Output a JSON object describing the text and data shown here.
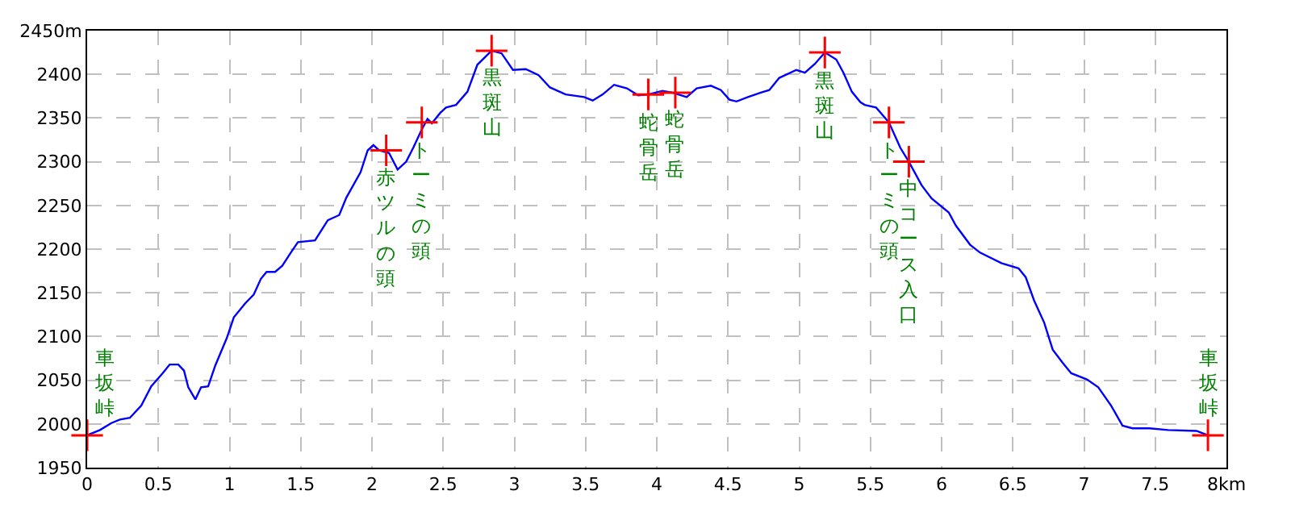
{
  "chart_data": {
    "type": "line",
    "xlim": [
      0,
      8
    ],
    "ylim": [
      1950,
      2450
    ],
    "xticks": [
      0,
      0.5,
      1,
      1.5,
      2,
      2.5,
      3,
      3.5,
      4,
      4.5,
      5,
      5.5,
      6,
      6.5,
      7,
      7.5,
      {
        "value": 8,
        "label": "8km"
      }
    ],
    "yticks": [
      1950,
      2000,
      2050,
      2100,
      2150,
      2200,
      2250,
      2300,
      2350,
      2400,
      {
        "value": 2450,
        "label": "2450m"
      }
    ],
    "grid": true,
    "marker": "none",
    "line_style": "solid",
    "series": [
      {
        "color": "#0000ff",
        "x": [
          0,
          0.09,
          0.17,
          0.23,
          0.3,
          0.38,
          0.45,
          0.53,
          0.58,
          0.64,
          0.68,
          0.71,
          0.76,
          0.8,
          0.85,
          0.9,
          0.98,
          1.03,
          1.11,
          1.17,
          1.22,
          1.26,
          1.32,
          1.37,
          1.43,
          1.48,
          1.6,
          1.69,
          1.77,
          1.82,
          1.92,
          1.97,
          2.01,
          2.05,
          2.12,
          2.18,
          2.24,
          2.29,
          2.35,
          2.39,
          2.42,
          2.48,
          2.52,
          2.59,
          2.67,
          2.74,
          2.84,
          2.91,
          2.99,
          3.08,
          3.17,
          3.25,
          3.36,
          3.49,
          3.55,
          3.62,
          3.7,
          3.79,
          3.87,
          3.94,
          4.04,
          4.11,
          4.21,
          4.28,
          4.38,
          4.45,
          4.51,
          4.56,
          4.64,
          4.73,
          4.79,
          4.86,
          4.98,
          5.04,
          5.11,
          5.18,
          5.26,
          5.31,
          5.37,
          5.43,
          5.46,
          5.54,
          5.63,
          5.71,
          5.77,
          5.86,
          5.93,
          6.05,
          6.1,
          6.2,
          6.27,
          6.42,
          6.54,
          6.59,
          6.65,
          6.72,
          6.78,
          6.85,
          6.91,
          7.02,
          7.1,
          7.19,
          7.27,
          7.34,
          7.46,
          7.59,
          7.79,
          7.87
        ],
        "values": [
          1987,
          1993,
          2001,
          2005,
          2007,
          2021,
          2043,
          2058,
          2068,
          2068,
          2061,
          2042,
          2028,
          2042,
          2043,
          2067,
          2098,
          2122,
          2138,
          2148,
          2166,
          2174,
          2174,
          2181,
          2196,
          2208,
          2210,
          2233,
          2239,
          2259,
          2288,
          2313,
          2319,
          2313,
          2310,
          2291,
          2300,
          2316,
          2337,
          2349,
          2344,
          2356,
          2362,
          2365,
          2380,
          2411,
          2427,
          2424,
          2405,
          2406,
          2399,
          2385,
          2377,
          2374,
          2370,
          2377,
          2388,
          2384,
          2376,
          2377,
          2381,
          2379,
          2374,
          2384,
          2387,
          2382,
          2371,
          2369,
          2374,
          2379,
          2382,
          2396,
          2405,
          2402,
          2412,
          2425,
          2417,
          2402,
          2380,
          2368,
          2365,
          2362,
          2345,
          2316,
          2300,
          2273,
          2258,
          2242,
          2227,
          2205,
          2196,
          2184,
          2178,
          2168,
          2141,
          2116,
          2085,
          2070,
          2058,
          2051,
          2042,
          2021,
          1998,
          1995,
          1995,
          1993,
          1992,
          1987
        ]
      },
      {
        "type": "scatter",
        "color": "#ff0000",
        "marker": "cross",
        "x": [
          0,
          2.1,
          2.35,
          2.84,
          3.94,
          4.13,
          5.18,
          5.63,
          5.77,
          7.87
        ],
        "values": [
          1987,
          2313,
          2345,
          2427,
          2377,
          2379,
          2425,
          2345,
          2300,
          1987
        ]
      }
    ],
    "annotations": [
      {
        "text": "車坂峠",
        "x": 0,
        "y": 1987
      },
      {
        "text": "赤ツルの頭",
        "x": 2.1,
        "y": 2313
      },
      {
        "text": "トーミの頭",
        "x": 2.35,
        "y": 2345
      },
      {
        "text": "黒斑山",
        "x": 2.84,
        "y": 2427
      },
      {
        "text": "蛇骨岳",
        "x": 3.94,
        "y": 2377
      },
      {
        "text": "蛇骨岳",
        "x": 4.13,
        "y": 2379
      },
      {
        "text": "黒斑山",
        "x": 5.18,
        "y": 2425
      },
      {
        "text": "トーミの頭",
        "x": 5.63,
        "y": 2345
      },
      {
        "text": "中コース入口",
        "x": 5.77,
        "y": 2300
      },
      {
        "text": "車坂峠",
        "x": 7.87,
        "y": 1987
      }
    ]
  }
}
